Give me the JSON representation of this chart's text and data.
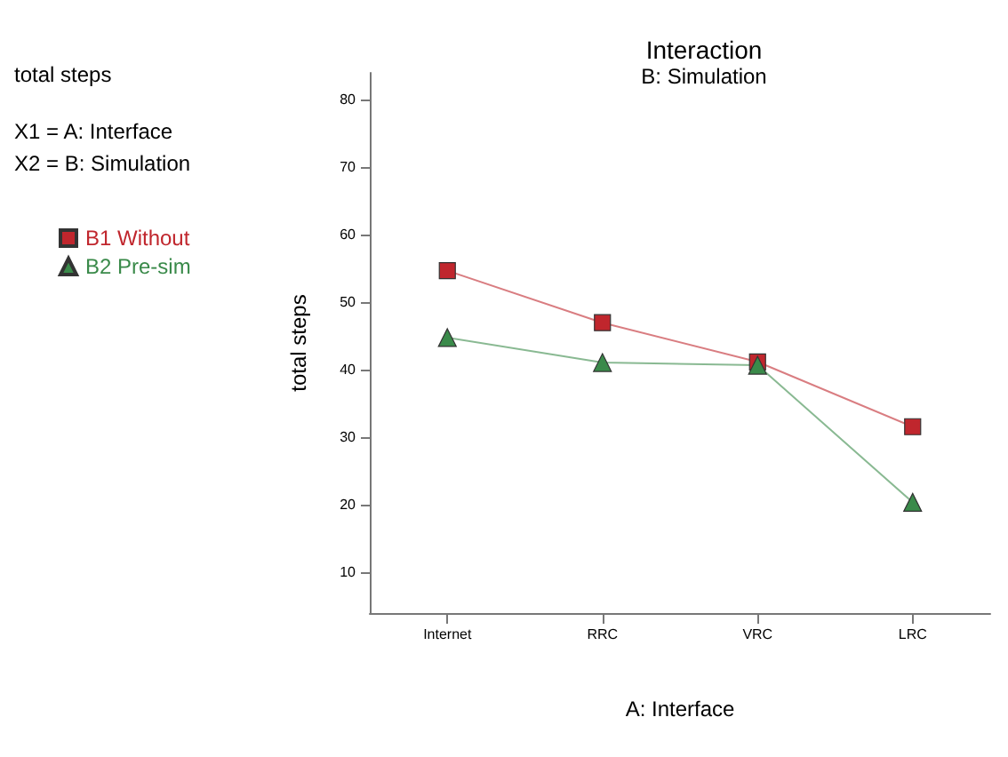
{
  "chart_data": {
    "type": "line",
    "title": "Interaction",
    "subtitle": "B: Simulation",
    "xlabel": "A: Interface",
    "ylabel": "total steps",
    "annotations": [
      "total steps",
      "X1 = A: Interface",
      "X2 = B: Simulation"
    ],
    "categories": [
      "Internet",
      "RRC",
      "VRC",
      "LRC"
    ],
    "series": [
      {
        "name": "B1 Without",
        "color": "#c0262d",
        "marker": "square",
        "values": [
          54.7,
          47.0,
          41.2,
          31.6
        ]
      },
      {
        "name": "B2 Pre-sim",
        "color": "#3a8a4a",
        "marker": "triangle",
        "values": [
          44.8,
          41.1,
          40.7,
          20.4
        ]
      }
    ],
    "ylim": [
      4,
      84
    ],
    "yticks": [
      10,
      20,
      30,
      40,
      50,
      60,
      70,
      80
    ],
    "grid": false,
    "legend": "top left",
    "line_style": "solid"
  }
}
